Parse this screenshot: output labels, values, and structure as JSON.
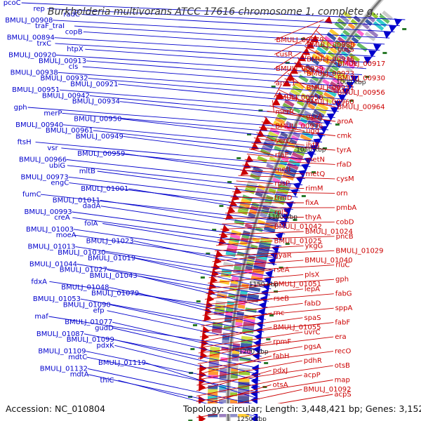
{
  "title": "Burkholderia multivorans ATCC 17616 chromosome 1, complete g...",
  "footer": {
    "accession": "Accession: NC_010804",
    "topology": "Topology: circular; Length: 3,448,421 bp; Genes: 3,152"
  },
  "colors": {
    "forward_strand": "#0000cc",
    "reverse_strand": "#cc0000",
    "backbone": "#777777",
    "gc_skew": "#2a7a2a"
  },
  "kbp_ticks": [
    "1000 kbp",
    "1050 kbp",
    "1100 kbp",
    "1150 kbp",
    "1200 kbp",
    "1250 kbp"
  ],
  "forward_genes": [
    "pcoC",
    "rep",
    "radC",
    "BMULJ_00908",
    "traF_traI",
    "copB",
    "BMULJ_00894",
    "trxC",
    "htpX",
    "BMULJ_00920",
    "BMULJ_00913",
    "cls",
    "BMULJ_00938",
    "BMULJ_00932",
    "BMULJ_00921",
    "BMULJ_00951",
    "BMULJ_00942",
    "BMULJ_00934",
    "gph",
    "merP",
    "BMULJ_00950",
    "BMULJ_00940",
    "BMULJ_00961",
    "BMULJ_00949",
    "ftsH",
    "vsr",
    "BMULJ_00959",
    "BMULJ_00966",
    "ubiG",
    "mltB",
    "BMULJ_00973",
    "engC",
    "BMULJ_01001",
    "fumC",
    "BMULJ_01011",
    "dadA",
    "BMULJ_00993",
    "creA",
    "folA",
    "BMULJ_01003",
    "moeA",
    "BMULJ_01023",
    "BMULJ_01013",
    "BMULJ_01030",
    "BMULJ_01019",
    "BMULJ_01044",
    "BMULJ_01027",
    "BMULJ_01043",
    "fdxA",
    "BMULJ_01048",
    "BMULJ_01079",
    "BMULJ_01053",
    "BMULJ_01090",
    "efp",
    "maf",
    "BMULJ_01077",
    "gudD",
    "BMULJ_01087",
    "BMULJ_01099",
    "pdxK",
    "BMULJ_01109",
    "mdtC",
    "BMULJ_01119",
    "BMULJ_01132",
    "mdtA",
    "thiC"
  ],
  "reverse_genes": [
    "BMULJ_00879",
    "BMULJ_00880",
    "cusS",
    "cusR",
    "BMULJ_00915",
    "BMULJ_00917",
    "BMULJ_00929",
    "BMULJ_00923",
    "BMULJ_00930",
    "arsC1",
    "BMULJ_00931",
    "BMULJ_00956",
    "BMULJ_00958",
    "BMULJ_00960",
    "BMULJ_00964",
    "merR",
    "gyrA",
    "aroA",
    "BMULJ_00976",
    "ugd",
    "cmk",
    "serC",
    "ihfB",
    "tyrA",
    "rfaE",
    "metN",
    "rfaD",
    "metI",
    "metQ",
    "cysM",
    "rpsP",
    "rimM",
    "orn",
    "trmD",
    "fixA",
    "pmbA",
    "rplS",
    "thyA",
    "cobD",
    "BMULJ_01042",
    "BMULJ_01024",
    "pncB",
    "BMULJ_01025",
    "ykgG",
    "BMULJ_01029",
    "gyaR",
    "BMULJ_01040",
    "rluC",
    "rseA",
    "plsX",
    "gph",
    "BMULJ_01051",
    "lepA",
    "fabG",
    "rseB",
    "fabD",
    "sppA",
    "rnc",
    "spaS",
    "fabF",
    "BMULJ_01055",
    "uvrC",
    "era",
    "rpmF",
    "pgsA",
    "recO",
    "fabH",
    "pdhR",
    "otsB",
    "pdxJ",
    "acpP",
    "map",
    "otsA",
    "BMULJ_01092",
    "acpS"
  ]
}
